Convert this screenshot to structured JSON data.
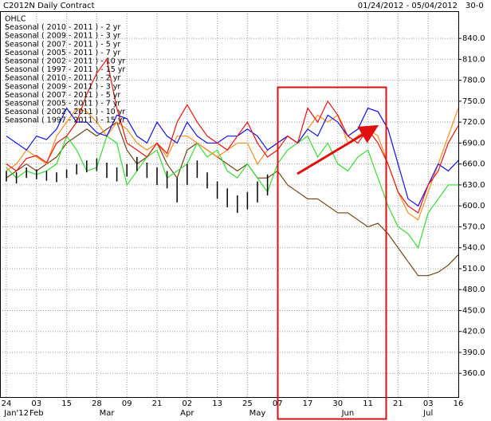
{
  "chart_data": {
    "type": "line",
    "title": "C2012N Daily Contract",
    "date_range": "01/24/2012 - 05/04/2012",
    "corner_label": "30-0",
    "legend": [
      {
        "label": "OHLC",
        "color": "#333399"
      },
      {
        "label": "Seasonal ( 2010 - 2011 ) - 2 yr",
        "color": "#ff0000"
      },
      {
        "label": "Seasonal ( 2009 - 2011 ) - 3 yr",
        "color": "#00cc00"
      },
      {
        "label": "Seasonal ( 2007 - 2011 ) - 5 yr",
        "color": "#0000ff"
      },
      {
        "label": "Seasonal ( 2005 - 2011 ) - 7 yr",
        "color": "#ff8800"
      },
      {
        "label": "Seasonal ( 2002 - 2011 ) - 10 yr",
        "color": "#804000"
      },
      {
        "label": "Seasonal ( 1997 - 2011 ) - 15 yr",
        "color": "#a05020"
      },
      {
        "label": "Seasonal ( 2010 - 2011 ) - 2 yr",
        "color": "#ff6600"
      },
      {
        "label": "Seasonal ( 2009 - 2011 ) - 3 yr",
        "color": "#336600"
      },
      {
        "label": "Seasonal ( 2007 - 2011 ) - 5 yr",
        "color": "#000066"
      },
      {
        "label": "Seasonal ( 2005 - 2011 ) - 7 yr",
        "color": "#333333"
      },
      {
        "label": "Seasonal ( 2002 - 2011 ) - 10 yr",
        "color": "#cc6600"
      },
      {
        "label": "Seasonal ( 1997 - 2011 ) - 15 yr",
        "color": "#663300"
      }
    ],
    "categories": [
      "24",
      null,
      null,
      "03",
      null,
      null,
      "15",
      null,
      null,
      "28",
      null,
      null,
      "09",
      null,
      null,
      "21",
      null,
      null,
      "02",
      null,
      null,
      "13",
      null,
      null,
      "25",
      null,
      null,
      "07",
      null,
      null,
      "17",
      null,
      null,
      "30",
      null,
      null,
      "11",
      null,
      null,
      "21",
      null,
      null,
      "03",
      null,
      null,
      "16"
    ],
    "month_labels": [
      null,
      "Jan'12",
      null,
      "Feb",
      null,
      null,
      null,
      null,
      null,
      null,
      "Mar",
      null,
      null,
      null,
      null,
      null,
      null,
      null,
      "Apr",
      null,
      null,
      null,
      null,
      null,
      null,
      "May",
      null,
      null,
      null,
      null,
      null,
      null,
      null,
      null,
      "Jun",
      null,
      null,
      null,
      null,
      null,
      null,
      null,
      "Jul",
      null,
      null,
      null
    ],
    "series": [
      {
        "color": "#704214",
        "values": [
          640,
          650,
          660,
          650,
          660,
          670,
          690,
          700,
          710,
          700,
          710,
          720,
          680,
          660,
          670,
          690,
          660,
          640,
          680,
          690,
          680,
          670,
          660,
          650,
          660,
          640,
          640,
          650,
          630,
          620,
          610,
          610,
          600,
          590,
          590,
          580,
          570,
          575,
          560,
          540,
          520,
          500,
          500,
          505,
          515,
          530
        ]
      },
      {
        "color": "#33dd33",
        "values": [
          655,
          640,
          650,
          645,
          650,
          660,
          700,
          680,
          650,
          655,
          700,
          690,
          630,
          650,
          670,
          680,
          640,
          650,
          660,
          690,
          670,
          680,
          650,
          640,
          660,
          640,
          620,
          660,
          680,
          690,
          700,
          670,
          690,
          660,
          650,
          670,
          680,
          640,
          600,
          570,
          560,
          540,
          590,
          610,
          630,
          630
        ]
      },
      {
        "color": "#ff8c1a",
        "values": [
          650,
          660,
          680,
          670,
          660,
          700,
          720,
          740,
          735,
          720,
          700,
          720,
          710,
          690,
          680,
          690,
          670,
          700,
          700,
          690,
          680,
          670,
          680,
          690,
          690,
          660,
          680,
          690,
          700,
          690,
          710,
          730,
          720,
          730,
          690,
          700,
          710,
          700,
          660,
          620,
          590,
          580,
          620,
          660,
          700,
          740
        ]
      },
      {
        "color": "#1111ee",
        "values": [
          700,
          690,
          680,
          700,
          695,
          710,
          740,
          720,
          720,
          705,
          700,
          730,
          725,
          700,
          690,
          720,
          700,
          690,
          720,
          700,
          690,
          690,
          700,
          700,
          710,
          700,
          680,
          690,
          700,
          690,
          710,
          700,
          730,
          720,
          700,
          710,
          740,
          735,
          710,
          660,
          610,
          600,
          630,
          660,
          650,
          665
        ]
      },
      {
        "color": "#ee1111",
        "values": [
          660,
          650,
          668,
          672,
          662,
          690,
          700,
          720,
          760,
          790,
          810,
          740,
          690,
          680,
          670,
          690,
          675,
          720,
          745,
          720,
          700,
          690,
          680,
          700,
          720,
          690,
          670,
          680,
          700,
          690,
          740,
          720,
          750,
          730,
          700,
          690,
          710,
          690,
          660,
          620,
          600,
          590,
          630,
          650,
          690,
          715
        ]
      }
    ],
    "ohlc": {
      "color": "#000000",
      "high": [
        650,
        648,
        655,
        652,
        650,
        648,
        652,
        660,
        665,
        668,
        662,
        655,
        660,
        670,
        662,
        655,
        650,
        640,
        660,
        665,
        648,
        635,
        625,
        615,
        620,
        635,
        645
      ],
      "low": [
        635,
        632,
        640,
        638,
        636,
        634,
        640,
        645,
        648,
        650,
        640,
        635,
        642,
        650,
        640,
        630,
        625,
        605,
        630,
        640,
        625,
        610,
        598,
        590,
        595,
        605,
        615
      ]
    },
    "ylim": [
      326,
      879
    ],
    "yticks": [
      {
        "value": 360,
        "label": "360.0"
      },
      {
        "value": 390,
        "label": "390.0"
      },
      {
        "value": 420,
        "label": "420.0"
      },
      {
        "value": 450,
        "label": "450.0"
      },
      {
        "value": 480,
        "label": "480.0"
      },
      {
        "value": 510,
        "label": "510.0"
      },
      {
        "value": 540,
        "label": "540.0"
      },
      {
        "value": 570,
        "label": "570.0"
      },
      {
        "value": 600,
        "label": "600.0"
      },
      {
        "value": 630,
        "label": "630.0"
      },
      {
        "value": 660,
        "label": "660.0"
      },
      {
        "value": 690,
        "label": "690.0"
      },
      {
        "value": 720,
        "label": "720.0"
      },
      {
        "value": 750,
        "label": "750.0"
      },
      {
        "value": 780,
        "label": "780.0"
      },
      {
        "value": 810,
        "label": "810.0"
      },
      {
        "value": 840,
        "label": "840.0"
      }
    ],
    "grid": true
  }
}
